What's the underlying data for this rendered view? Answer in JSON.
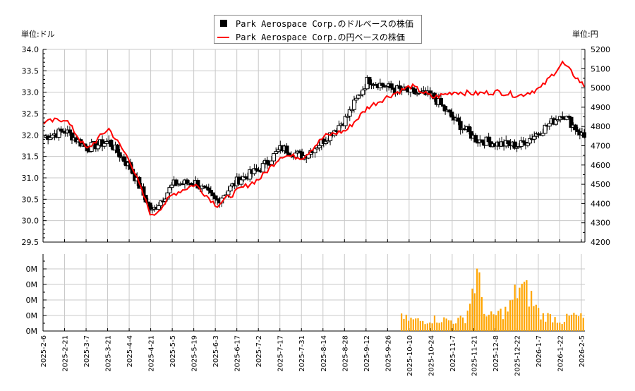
{
  "legend": {
    "usd_label": "Park Aerospace Corp.のドルベースの株価",
    "jpy_label": "Park Aerospace Corp.の円ベースの株価"
  },
  "axes": {
    "left_unit": "単位:ドル",
    "right_unit": "単位:円",
    "left_ticks": [
      "34.0",
      "33.5",
      "33.0",
      "32.5",
      "32.0",
      "31.5",
      "31.0",
      "30.5",
      "30.0",
      "29.5"
    ],
    "right_ticks": [
      "5200",
      "5100",
      "5000",
      "4900",
      "4800",
      "4700",
      "4600",
      "4500",
      "4400",
      "4300",
      "4200"
    ],
    "volume_ticks": [
      "0M",
      "0M",
      "0M",
      "0M",
      "0M"
    ],
    "x_ticks": [
      "2025-2-6",
      "2025-2-21",
      "2025-3-7",
      "2025-3-21",
      "2025-4-4",
      "2025-4-21",
      "2025-5-5",
      "2025-5-19",
      "2025-6-3",
      "2025-6-17",
      "2025-7-2",
      "2025-7-17",
      "2025-7-31",
      "2025-8-14",
      "2025-8-28",
      "2025-9-12",
      "2025-9-26",
      "2025-10-10",
      "2025-10-24",
      "2025-11-7",
      "2025-11-21",
      "2025-12-8",
      "2025-12-22",
      "2026-1-7",
      "2026-1-22",
      "2026-2-5"
    ]
  },
  "colors": {
    "usd_candle": "#000000",
    "jpy_line": "#ff0000",
    "volume_bar": "#ffa500",
    "grid": "#c8c8c8"
  },
  "chart_data": [
    {
      "type": "line",
      "title": "Park Aerospace Corp. 株価 (ドル / 円)",
      "xlabel": "",
      "ylabel_left": "単位:ドル",
      "ylabel_right": "単位:円",
      "ylim_left": [
        29.5,
        34.0
      ],
      "ylim_right": [
        4200,
        5200
      ],
      "grid": true,
      "legend_position": "top-center",
      "categories": [
        "2025-2-6",
        "2025-2-21",
        "2025-3-7",
        "2025-3-21",
        "2025-4-4",
        "2025-4-21",
        "2025-5-5",
        "2025-5-19",
        "2025-6-3",
        "2025-6-17",
        "2025-7-2",
        "2025-7-17",
        "2025-7-31",
        "2025-8-14",
        "2025-8-28",
        "2025-9-12",
        "2025-9-26",
        "2025-10-10",
        "2025-10-24",
        "2025-11-7",
        "2025-11-21",
        "2025-12-8",
        "2025-12-22",
        "2026-1-7",
        "2026-1-22",
        "2026-2-5"
      ],
      "series": [
        {
          "name": "Park Aerospace Corp.のドルベースの株価",
          "axis": "left",
          "style": "candlestick",
          "values": [
            31.95,
            32.1,
            31.7,
            31.85,
            31.25,
            30.2,
            30.85,
            30.9,
            30.45,
            30.95,
            31.2,
            31.7,
            31.5,
            31.9,
            32.4,
            33.3,
            33.1,
            33.0,
            32.9,
            32.35,
            31.9,
            31.8,
            31.75,
            32.1,
            32.5,
            31.95
          ]
        },
        {
          "name": "Park Aerospace Corp.の円ベースの株価",
          "axis": "right",
          "style": "line",
          "values": [
            4820,
            4840,
            4680,
            4790,
            4620,
            4330,
            4450,
            4500,
            4390,
            4470,
            4530,
            4650,
            4640,
            4750,
            4780,
            4900,
            4960,
            5010,
            4950,
            4980,
            4970,
            4980,
            4960,
            5000,
            5130,
            5010
          ]
        }
      ]
    },
    {
      "type": "bar",
      "title": "出来高",
      "ylabel": "",
      "ytick_labels": [
        "0M",
        "0M",
        "0M",
        "0M",
        "0M"
      ],
      "grid": true,
      "categories": [
        "2025-10-3",
        "2025-10-10",
        "2025-10-17",
        "2025-10-24",
        "2025-10-31",
        "2025-11-7",
        "2025-11-14",
        "2025-11-21",
        "2025-11-28",
        "2025-12-8",
        "2025-12-15",
        "2025-12-22",
        "2025-12-29",
        "2026-1-7",
        "2026-1-14",
        "2026-1-22",
        "2026-1-29",
        "2026-2-5"
      ],
      "values": [
        0.9,
        0.8,
        0.7,
        0.85,
        0.8,
        0.7,
        0.9,
        4.0,
        0.9,
        1.2,
        1.5,
        3.2,
        2.5,
        1.1,
        1.0,
        0.7,
        1.1,
        0.9
      ]
    }
  ]
}
